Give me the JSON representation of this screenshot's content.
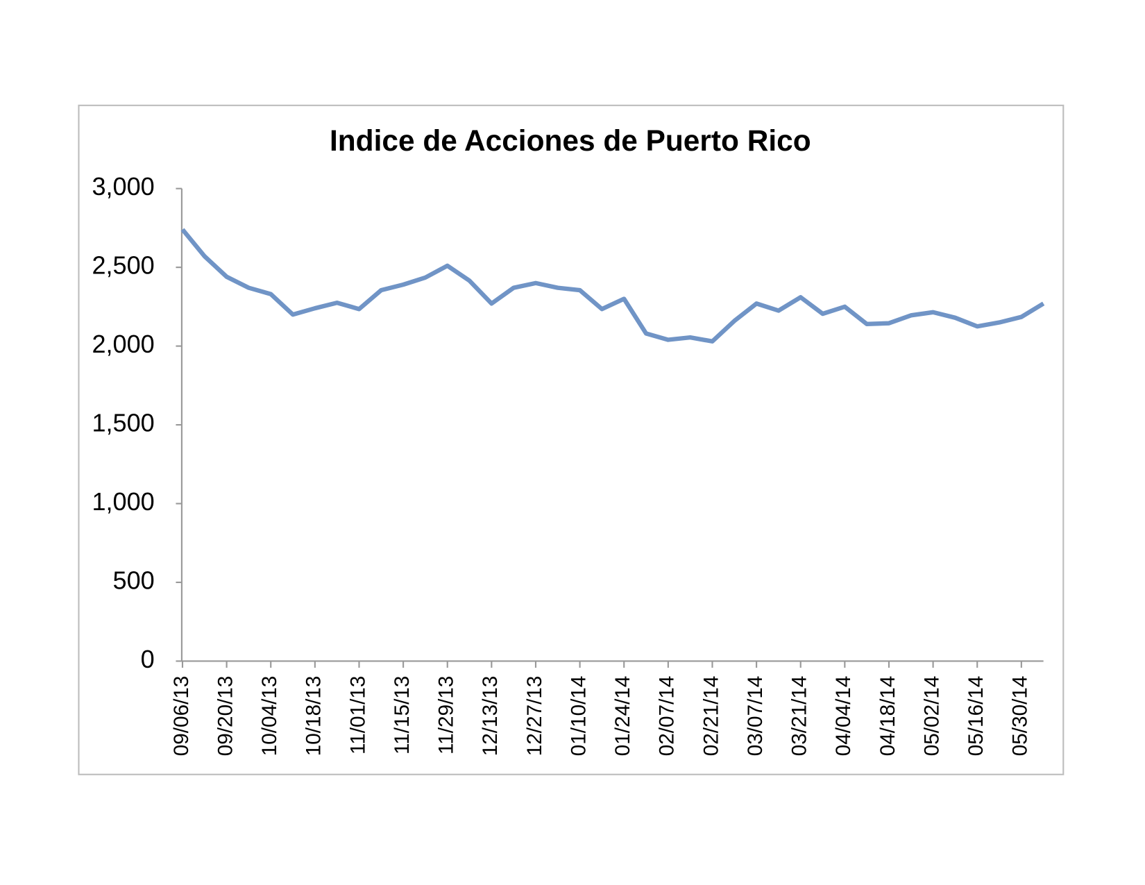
{
  "chart_data": {
    "type": "line",
    "title": "Indice de Acciones de Puerto Rico",
    "categories": [
      "09/06/13",
      null,
      "09/20/13",
      null,
      "10/04/13",
      null,
      "10/18/13",
      null,
      "11/01/13",
      null,
      "11/15/13",
      null,
      "11/29/13",
      null,
      "12/13/13",
      null,
      "12/27/13",
      null,
      "01/10/14",
      null,
      "01/24/14",
      null,
      "02/07/14",
      null,
      "02/21/14",
      null,
      "03/07/14",
      null,
      "03/21/14",
      null,
      "04/04/14",
      null,
      "04/18/14",
      null,
      "05/02/14",
      null,
      "05/16/14",
      null,
      "05/30/14",
      null
    ],
    "series": [
      {
        "name": "Indice",
        "color": "#7094c6",
        "values": [
          2740,
          2570,
          2440,
          2370,
          2330,
          2200,
          2240,
          2275,
          2235,
          2355,
          2390,
          2435,
          2510,
          2415,
          2270,
          2370,
          2400,
          2370,
          2355,
          2235,
          2300,
          2080,
          2040,
          2055,
          2030,
          2160,
          2270,
          2225,
          2310,
          2205,
          2250,
          2140,
          2145,
          2195,
          2215,
          2180,
          2125,
          2150,
          2185,
          2270
        ]
      }
    ],
    "ylim": [
      0,
      3000
    ],
    "yticks": [
      0,
      500,
      {
        "value": 1000,
        "label": "1,000"
      },
      {
        "value": 1500,
        "label": "1,500"
      },
      {
        "value": 2000,
        "label": "2,000"
      },
      {
        "value": 2500,
        "label": "2,500"
      },
      {
        "value": 3000,
        "label": "3,000"
      }
    ],
    "grid": false
  }
}
